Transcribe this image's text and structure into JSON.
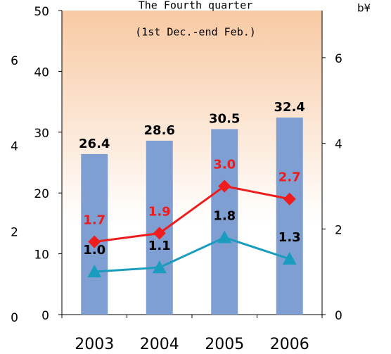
{
  "chart_data": {
    "type": "bar",
    "title": "The Fourth quarter",
    "subtitle": "(1st Dec.-end Feb.)",
    "corner_text": "b¥",
    "categories": [
      "2003",
      "2004",
      "2005",
      "2006"
    ],
    "values": [
      26.4,
      28.6,
      30.5,
      32.4
    ],
    "color": "#7f9fd2",
    "ylim": [
      0,
      50
    ],
    "yticks": [
      0,
      10,
      20,
      30,
      40,
      50
    ],
    "y2lim": [
      0,
      7.1
    ],
    "y2ticks": [
      0,
      2,
      4,
      6
    ],
    "series": [
      {
        "type": "line",
        "axis": "y2",
        "color": "#ee1c1c",
        "marker": "diamond",
        "values": [
          1.7,
          1.9,
          3.0,
          2.7
        ],
        "value_labels": [
          "1.7",
          "1.9",
          "3.0",
          "2.7"
        ]
      },
      {
        "type": "line",
        "axis": "y2",
        "color": "#1a9cbf",
        "marker": "triangle",
        "values": [
          1.0,
          1.1,
          1.8,
          1.3
        ],
        "value_labels": [
          "1.0",
          "1.1",
          "1.8",
          "1.3"
        ]
      }
    ]
  }
}
